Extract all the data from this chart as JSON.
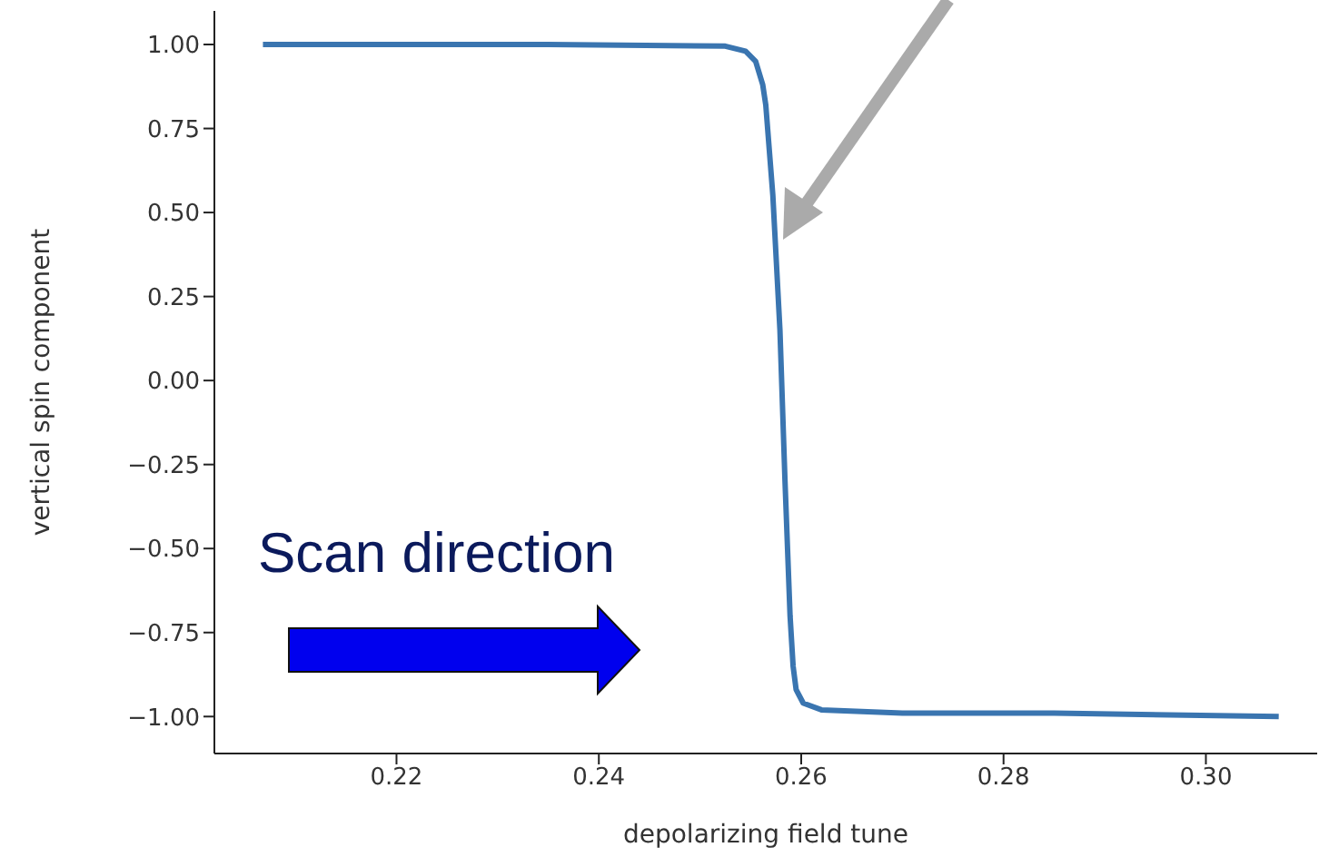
{
  "chart_data": {
    "type": "line",
    "xlabel": "depolarizing field tune",
    "ylabel": "vertical spin component",
    "x": [
      0.2068,
      0.22,
      0.235,
      0.2525,
      0.2545,
      0.2555,
      0.2562,
      0.2565,
      0.2572,
      0.2579,
      0.2584,
      0.2589,
      0.2592,
      0.2595,
      0.2602,
      0.262,
      0.27,
      0.285,
      0.3072
    ],
    "series": [
      {
        "color": "#3a75b0",
        "values": [
          1.0,
          1.0,
          1.0,
          0.995,
          0.98,
          0.95,
          0.88,
          0.82,
          0.55,
          0.15,
          -0.3,
          -0.7,
          -0.85,
          -0.92,
          -0.96,
          -0.98,
          -0.99,
          -0.99,
          -1.0
        ]
      }
    ],
    "xlim": [
      0.202,
      0.311
    ],
    "ylim": [
      -1.11,
      1.1
    ],
    "xticks": [
      0.22,
      0.24,
      0.26,
      0.28,
      {
        "value": 0.3,
        "label": "0.30"
      }
    ],
    "yticks": [
      {
        "value": 1,
        "label": "1.00"
      },
      0.75,
      {
        "value": 0.5,
        "label": "0.50"
      },
      0.25,
      {
        "value": 0,
        "label": "0.00"
      },
      {
        "value": -0.25,
        "label": "−0.25"
      },
      {
        "value": -0.5,
        "label": "−0.50"
      },
      {
        "value": -0.75,
        "label": "−0.75"
      },
      {
        "value": -1,
        "label": "−1.00"
      }
    ],
    "annotations": [
      "Scan direction"
    ],
    "grid": false,
    "legend": false,
    "marker": "none",
    "line_style": "solid"
  }
}
